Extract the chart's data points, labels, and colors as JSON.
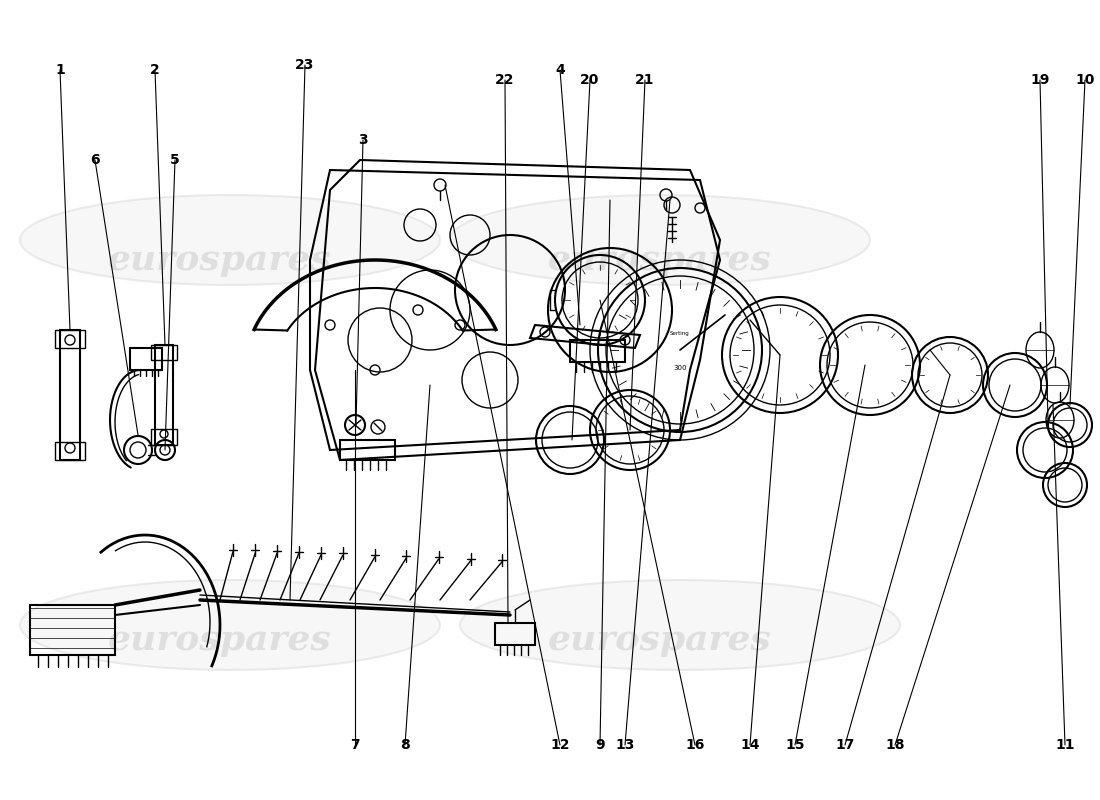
{
  "bg": "#ffffff",
  "lc": "#000000",
  "wm": "#c8c8c8",
  "wm_text": "eurospares",
  "fig_w": 11.0,
  "fig_h": 8.0,
  "dpi": 100
}
